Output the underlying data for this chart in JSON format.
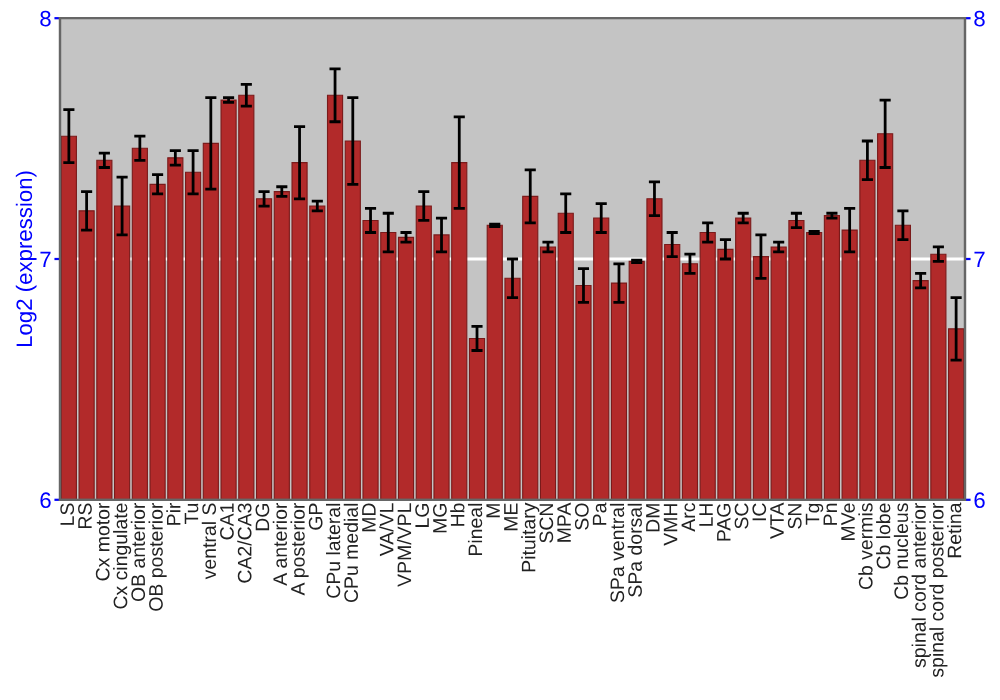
{
  "chart_data": {
    "type": "bar",
    "ylabel": "Log2 (expression)",
    "categories": [
      "LS",
      "RS",
      "Cx motor",
      "Cx cingulate",
      "OB anterior",
      "OB posterior",
      "Pir",
      "Tu",
      "ventral S",
      "CA1",
      "CA2/CA3",
      "DG",
      "A anterior",
      "A posterior",
      "GP",
      "CPu lateral",
      "CPu medial",
      "MD",
      "VA/VL",
      "VPM/VPL",
      "LG",
      "MG",
      "Hb",
      "Pineal",
      "M",
      "ME",
      "Pituitary",
      "SCN",
      "MPA",
      "SO",
      "Pa",
      "SPa ventral",
      "SPa dorsal",
      "DM",
      "VMH",
      "Arc",
      "LH",
      "PAG",
      "SC",
      "IC",
      "VTA",
      "SN",
      "Tg",
      "Pn",
      "MVe",
      "Cb vermis",
      "Cb lobe",
      "Cb nucleus",
      "spinal cord anterior",
      "spinal cord posterior",
      "Retina"
    ],
    "values": [
      7.51,
      7.2,
      7.41,
      7.22,
      7.46,
      7.31,
      7.42,
      7.36,
      7.48,
      7.66,
      7.68,
      7.25,
      7.28,
      7.4,
      7.22,
      7.68,
      7.49,
      7.16,
      7.11,
      7.09,
      7.22,
      7.1,
      7.4,
      6.67,
      7.14,
      6.92,
      7.26,
      7.05,
      7.19,
      6.89,
      7.17,
      6.9,
      6.99,
      7.25,
      7.06,
      6.98,
      7.11,
      7.04,
      7.17,
      7.01,
      7.05,
      7.16,
      7.11,
      7.18,
      7.12,
      7.41,
      7.52,
      7.14,
      6.91,
      7.02,
      6.71
    ],
    "errors": [
      0.11,
      0.08,
      0.03,
      0.12,
      0.05,
      0.04,
      0.03,
      0.09,
      0.19,
      0.01,
      0.045,
      0.03,
      0.02,
      0.15,
      0.02,
      0.11,
      0.18,
      0.05,
      0.08,
      0.02,
      0.06,
      0.07,
      0.19,
      0.05,
      0.005,
      0.08,
      0.11,
      0.02,
      0.08,
      0.07,
      0.06,
      0.08,
      0.005,
      0.07,
      0.05,
      0.04,
      0.04,
      0.04,
      0.02,
      0.09,
      0.02,
      0.03,
      0.005,
      0.01,
      0.09,
      0.08,
      0.14,
      0.06,
      0.03,
      0.03,
      0.13
    ],
    "color": "#b22a2a",
    "ylim": [
      6,
      8
    ],
    "yticks": [
      6,
      7,
      8
    ],
    "y2lim": [
      6,
      8
    ],
    "y2ticks": [
      6,
      7,
      8
    ],
    "grid": "y"
  }
}
